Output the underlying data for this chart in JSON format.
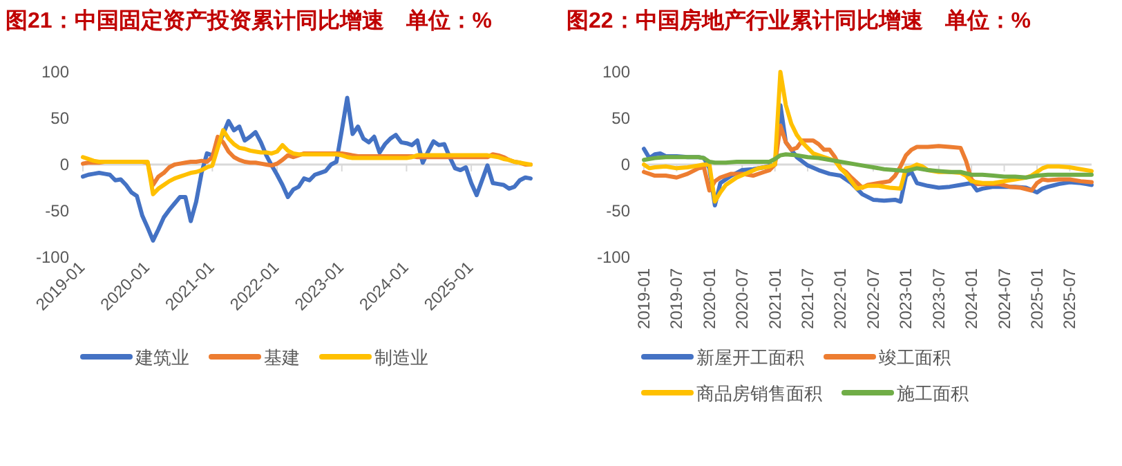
{
  "chart_data": [
    {
      "type": "line",
      "title": "图21：中国固定资产投资累计同比增速",
      "subtitle": "单位：%",
      "legend": "bottom",
      "ylim": [
        -100,
        100
      ],
      "yticks": [
        -100,
        -50,
        0,
        50,
        100
      ],
      "xlim": [
        "2019-01",
        "2025-12"
      ],
      "xticks": [
        "2019-01",
        "2020-01",
        "2021-01",
        "2022-01",
        "2023-01",
        "2024-01",
        "2025-01"
      ],
      "x": [
        "2019-01",
        "2019-02",
        "2019-03",
        "2019-04",
        "2019-05",
        "2019-06",
        "2019-07",
        "2019-08",
        "2019-09",
        "2019-10",
        "2019-11",
        "2019-12",
        "2020-01",
        "2020-02",
        "2020-03",
        "2020-04",
        "2020-05",
        "2020-06",
        "2020-07",
        "2020-08",
        "2020-09",
        "2020-10",
        "2020-11",
        "2020-12",
        "2021-01",
        "2021-02",
        "2021-03",
        "2021-04",
        "2021-05",
        "2021-06",
        "2021-07",
        "2021-08",
        "2021-09",
        "2021-10",
        "2021-11",
        "2021-12",
        "2022-01",
        "2022-02",
        "2022-03",
        "2022-04",
        "2022-05",
        "2022-06",
        "2022-07",
        "2022-08",
        "2022-09",
        "2022-10",
        "2022-11",
        "2022-12",
        "2023-01",
        "2023-02",
        "2023-03",
        "2023-04",
        "2023-05",
        "2023-06",
        "2023-07",
        "2023-08",
        "2023-09",
        "2023-10",
        "2023-11",
        "2023-12",
        "2024-01",
        "2024-02",
        "2024-03",
        "2024-04",
        "2024-05",
        "2024-06",
        "2024-07",
        "2024-08",
        "2024-09",
        "2024-10",
        "2024-11",
        "2024-12",
        "2025-01",
        "2025-02",
        "2025-03",
        "2025-04",
        "2025-05",
        "2025-06",
        "2025-07",
        "2025-08",
        "2025-09",
        "2025-10",
        "2025-11",
        "2025-12"
      ],
      "series": [
        {
          "name": "建筑业",
          "color": "#4472c4",
          "values": [
            -13,
            -11,
            -10,
            -9,
            -10,
            -11,
            -17,
            -16,
            -22,
            -30,
            -34,
            -55,
            -68,
            -82,
            -70,
            -57,
            -49,
            -42,
            -35,
            -35,
            -61,
            -40,
            -9,
            12,
            10,
            20,
            33,
            47,
            37,
            41,
            26,
            30,
            35,
            24,
            10,
            -1,
            -11,
            -22,
            -35,
            -27,
            -24,
            -15,
            -17,
            -11,
            -9,
            -7,
            0,
            3,
            37,
            72,
            33,
            41,
            28,
            24,
            30,
            13,
            22,
            28,
            32,
            24,
            23,
            21,
            26,
            2,
            14,
            25,
            21,
            22,
            8,
            -4,
            -6,
            -3,
            -20,
            -33,
            -17,
            -1,
            -20,
            -21,
            -22,
            -26,
            -24,
            -17,
            -14,
            -15
          ]
        },
        {
          "name": "基建",
          "color": "#ed7d31",
          "values": [
            1,
            2,
            2,
            2,
            3,
            3,
            3,
            3,
            3,
            3,
            3,
            3,
            2,
            -22,
            -13,
            -9,
            -3,
            0,
            1,
            2,
            3,
            3,
            4,
            3,
            8,
            30,
            24,
            14,
            8,
            5,
            3,
            2,
            2,
            1,
            0,
            -1,
            1,
            5,
            10,
            8,
            10,
            12,
            12,
            12,
            12,
            12,
            12,
            12,
            12,
            11,
            10,
            9,
            9,
            9,
            9,
            9,
            9,
            9,
            9,
            9,
            9,
            9,
            8,
            8,
            8,
            8,
            8,
            8,
            8,
            8,
            8,
            8,
            8,
            8,
            8,
            8,
            11,
            10,
            8,
            5,
            3,
            2,
            0,
            0
          ]
        },
        {
          "name": "制造业",
          "color": "#ffc000",
          "values": [
            8,
            6,
            4,
            3,
            3,
            3,
            3,
            3,
            3,
            3,
            3,
            3,
            3,
            -32,
            -26,
            -22,
            -18,
            -15,
            -13,
            -11,
            -9,
            -8,
            -6,
            -3,
            -1,
            18,
            37,
            28,
            22,
            18,
            17,
            15,
            14,
            13,
            13,
            12,
            14,
            21,
            15,
            12,
            11,
            11,
            11,
            11,
            11,
            11,
            11,
            11,
            10,
            8,
            7,
            7,
            7,
            7,
            7,
            7,
            7,
            7,
            7,
            7,
            7,
            8,
            10,
            10,
            10,
            10,
            10,
            10,
            10,
            10,
            10,
            10,
            10,
            10,
            10,
            10,
            9,
            8,
            6,
            5,
            3,
            2,
            1,
            0
          ]
        }
      ]
    },
    {
      "type": "line",
      "title": "图22：中国房地产行业累计同比增速",
      "subtitle": "单位：%",
      "legend": "bottom",
      "ylim": [
        -100,
        100
      ],
      "yticks": [
        -100,
        -50,
        0,
        50,
        100
      ],
      "xlim": [
        "2019-01",
        "2025-11"
      ],
      "xticks": [
        "2019-01",
        "2019-07",
        "2020-01",
        "2020-07",
        "2021-01",
        "2021-07",
        "2022-01",
        "2022-07",
        "2023-01",
        "2023-07",
        "2024-01",
        "2024-07",
        "2025-01",
        "2025-07"
      ],
      "series": [
        {
          "name": "新屋开工面积",
          "color": "#4472c4",
          "x": [
            "2019-01",
            "2019-02",
            "2019-03",
            "2019-04",
            "2019-05",
            "2019-07",
            "2019-09",
            "2019-11",
            "2019-12",
            "2020-01",
            "2020-02",
            "2020-03",
            "2020-05",
            "2020-07",
            "2020-09",
            "2020-11",
            "2021-01",
            "2021-02",
            "2021-03",
            "2021-04",
            "2021-05",
            "2021-07",
            "2021-09",
            "2021-11",
            "2022-01",
            "2022-03",
            "2022-05",
            "2022-07",
            "2022-09",
            "2022-11",
            "2022-12",
            "2023-01",
            "2023-02",
            "2023-03",
            "2023-05",
            "2023-07",
            "2023-09",
            "2023-11",
            "2024-01",
            "2024-02",
            "2024-03",
            "2024-05",
            "2024-07",
            "2024-09",
            "2024-11",
            "2025-01",
            "2025-02",
            "2025-03",
            "2025-05",
            "2025-07",
            "2025-09",
            "2025-10",
            "2025-11"
          ],
          "values": [
            17,
            7,
            11,
            12,
            9,
            9,
            8,
            8,
            7,
            -4,
            -44,
            -20,
            -12,
            -6,
            -5,
            -3,
            0,
            64,
            24,
            16,
            8,
            -1,
            -6,
            -10,
            -12,
            -20,
            -32,
            -38,
            -39,
            -38,
            -40,
            -12,
            -8,
            -20,
            -23,
            -25,
            -24,
            -22,
            -20,
            -28,
            -26,
            -24,
            -24,
            -24,
            -25,
            -30,
            -26,
            -24,
            -21,
            -19,
            -20,
            -21,
            -22
          ]
        },
        {
          "name": "竣工面积",
          "color": "#ed7d31",
          "x": [
            "2019-01",
            "2019-03",
            "2019-05",
            "2019-07",
            "2019-09",
            "2019-11",
            "2019-12",
            "2020-01",
            "2020-02",
            "2020-03",
            "2020-05",
            "2020-07",
            "2020-09",
            "2020-11",
            "2020-12",
            "2021-01",
            "2021-02",
            "2021-03",
            "2021-04",
            "2021-05",
            "2021-06",
            "2021-08",
            "2021-09",
            "2021-10",
            "2021-11",
            "2021-12",
            "2022-01",
            "2022-02",
            "2022-03",
            "2022-05",
            "2022-06",
            "2022-08",
            "2022-10",
            "2022-11",
            "2022-12",
            "2023-01",
            "2023-02",
            "2023-03",
            "2023-05",
            "2023-07",
            "2023-09",
            "2023-11",
            "2023-12",
            "2024-01",
            "2024-02",
            "2024-04",
            "2024-06",
            "2024-08",
            "2024-10",
            "2024-12",
            "2025-01",
            "2025-02",
            "2025-03",
            "2025-05",
            "2025-07",
            "2025-09",
            "2025-11"
          ],
          "values": [
            -8,
            -12,
            -12,
            -14,
            -10,
            -4,
            -3,
            -28,
            -18,
            -14,
            -10,
            -10,
            -12,
            -8,
            -6,
            0,
            42,
            24,
            16,
            18,
            26,
            26,
            22,
            16,
            16,
            8,
            -4,
            -8,
            -14,
            -25,
            -22,
            -20,
            -18,
            -12,
            -2,
            10,
            16,
            19,
            19,
            20,
            19,
            18,
            4,
            -16,
            -21,
            -21,
            -21,
            -24,
            -25,
            -28,
            -20,
            -16,
            -17,
            -16,
            -16,
            -18,
            -19
          ]
        },
        {
          "name": "商品房销售面积",
          "color": "#ffc000",
          "x": [
            "2019-01",
            "2019-02",
            "2019-03",
            "2019-05",
            "2019-07",
            "2019-09",
            "2019-11",
            "2019-12",
            "2020-01",
            "2020-02",
            "2020-03",
            "2020-04",
            "2020-06",
            "2020-08",
            "2020-10",
            "2020-12",
            "2021-01",
            "2021-02",
            "2021-03",
            "2021-04",
            "2021-05",
            "2021-06",
            "2021-07",
            "2021-08",
            "2021-10",
            "2021-12",
            "2022-01",
            "2022-02",
            "2022-03",
            "2022-04",
            "2022-06",
            "2022-08",
            "2022-10",
            "2022-12",
            "2023-01",
            "2023-02",
            "2023-03",
            "2023-04",
            "2023-05",
            "2023-07",
            "2023-09",
            "2023-11",
            "2023-12",
            "2024-01",
            "2024-03",
            "2024-05",
            "2024-07",
            "2024-09",
            "2024-11",
            "2024-12",
            "2025-01",
            "2025-02",
            "2025-03",
            "2025-05",
            "2025-07",
            "2025-09",
            "2025-11"
          ],
          "values": [
            0,
            -4,
            -3,
            -2,
            -4,
            -3,
            -1,
            0,
            0,
            -40,
            -30,
            -22,
            -14,
            -9,
            -4,
            -2,
            0,
            100,
            64,
            44,
            32,
            24,
            18,
            12,
            8,
            4,
            -4,
            -10,
            -18,
            -26,
            -23,
            -23,
            -25,
            -26,
            -4,
            -3,
            0,
            -2,
            -6,
            -8,
            -8,
            -9,
            -12,
            -18,
            -20,
            -20,
            -18,
            -16,
            -14,
            -12,
            -8,
            -4,
            -2,
            -2,
            -3,
            -5,
            -7
          ]
        },
        {
          "name": "施工面积",
          "color": "#70ad47",
          "x": [
            "2019-01",
            "2019-03",
            "2019-05",
            "2019-07",
            "2019-09",
            "2019-11",
            "2019-12",
            "2020-01",
            "2020-02",
            "2020-04",
            "2020-06",
            "2020-08",
            "2020-10",
            "2020-12",
            "2021-01",
            "2021-02",
            "2021-03",
            "2021-05",
            "2021-07",
            "2021-09",
            "2021-11",
            "2022-01",
            "2022-03",
            "2022-05",
            "2022-07",
            "2022-09",
            "2022-11",
            "2023-01",
            "2023-03",
            "2023-05",
            "2023-07",
            "2023-09",
            "2023-11",
            "2024-01",
            "2024-03",
            "2024-05",
            "2024-07",
            "2024-09",
            "2024-11",
            "2025-01",
            "2025-03",
            "2025-05",
            "2025-07",
            "2025-09",
            "2025-11"
          ],
          "values": [
            5,
            7,
            8,
            8,
            8,
            8,
            7,
            3,
            2,
            2,
            3,
            3,
            3,
            3,
            6,
            10,
            11,
            10,
            8,
            7,
            5,
            3,
            1,
            -1,
            -3,
            -5,
            -6,
            -7,
            -4,
            -6,
            -7,
            -8,
            -8,
            -11,
            -11,
            -12,
            -13,
            -13,
            -14,
            -12,
            -11,
            -11,
            -11,
            -11,
            -11
          ]
        }
      ]
    }
  ]
}
